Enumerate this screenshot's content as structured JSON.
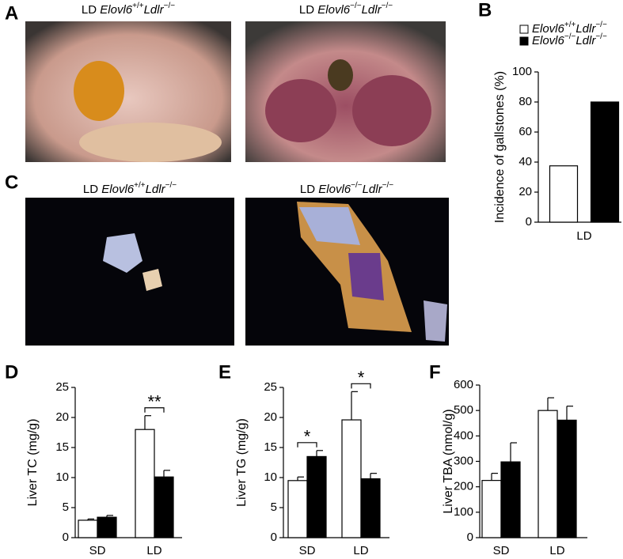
{
  "panels": [
    "A",
    "B",
    "C",
    "D",
    "E",
    "F"
  ],
  "images": [
    {
      "prefix": "LD",
      "gene1": "Elovl6",
      "sup1": "+/+",
      "gene2": "Ldlr",
      "sup2": "−/−"
    },
    {
      "prefix": "LD",
      "gene1": "Elovl6",
      "sup1": "−/−",
      "gene2": "Ldlr",
      "sup2": "−/−"
    },
    {
      "prefix": "LD",
      "gene1": "Elovl6",
      "sup1": "+/+",
      "gene2": "Ldlr",
      "sup2": "−/−"
    },
    {
      "prefix": "LD",
      "gene1": "Elovl6",
      "sup1": "−/−",
      "gene2": "Ldlr",
      "sup2": "−/−"
    }
  ],
  "chart_data": [
    {
      "type": "bar",
      "y_label": "Incidence of gallstones (%)",
      "categories": [
        "LD"
      ],
      "series": [
        {
          "name": {
            "gene1": "Elovl6",
            "sup1": "+/+",
            "gene2": "Ldlr",
            "sup2": "−/−"
          },
          "color": "#ffffff",
          "values": [
            37.5
          ]
        },
        {
          "name": {
            "gene1": "Elovl6",
            "sup1": "−/−",
            "gene2": "Ldlr",
            "sup2": "−/−"
          },
          "color": "#000000",
          "values": [
            80
          ]
        }
      ],
      "ylim": [
        0,
        100
      ],
      "yticks": [
        0,
        20,
        40,
        60,
        80,
        100
      ]
    },
    {
      "type": "bar",
      "y_label": "Liver TC (mg/g)",
      "categories": [
        "SD",
        "LD"
      ],
      "series": [
        {
          "color": "#ffffff",
          "values": [
            2.9,
            18
          ],
          "errors": [
            0.2,
            2.3
          ]
        },
        {
          "color": "#000000",
          "values": [
            3.4,
            10.1
          ],
          "errors": [
            0.3,
            1.1
          ]
        }
      ],
      "significance": [
        null,
        "**"
      ],
      "ylim": [
        0,
        25
      ],
      "yticks": [
        0,
        5,
        10,
        15,
        20,
        25
      ]
    },
    {
      "type": "bar",
      "y_label": "Liver TG (mg/g)",
      "categories": [
        "SD",
        "LD"
      ],
      "series": [
        {
          "color": "#ffffff",
          "values": [
            9.5,
            19.6
          ],
          "errors": [
            0.6,
            4.7
          ]
        },
        {
          "color": "#000000",
          "values": [
            13.5,
            9.8
          ],
          "errors": [
            1.0,
            0.9
          ]
        }
      ],
      "significance": [
        "*",
        "*"
      ],
      "ylim": [
        0,
        25
      ],
      "yticks": [
        0,
        5,
        10,
        15,
        20,
        25
      ]
    },
    {
      "type": "bar",
      "y_label": "Liver TBA (nmol/g)",
      "categories": [
        "SD",
        "LD"
      ],
      "series": [
        {
          "color": "#ffffff",
          "values": [
            225,
            500
          ],
          "errors": [
            28,
            50
          ]
        },
        {
          "color": "#000000",
          "values": [
            298,
            462
          ],
          "errors": [
            75,
            55
          ]
        }
      ],
      "ylim": [
        0,
        600
      ],
      "yticks": [
        0,
        100,
        200,
        300,
        400,
        500,
        600
      ]
    }
  ]
}
